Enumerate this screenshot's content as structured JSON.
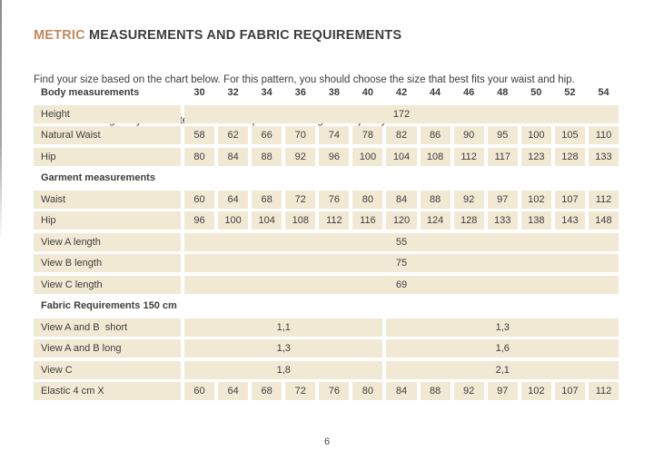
{
  "header": {
    "title_accent": "METRIC",
    "title_rest": " MEASUREMENTS AND FABRIC REQUIREMENTS",
    "subtitle_line1": "Find your size based on the chart below. For this pattern, you should choose the size that best fits your waist and hip.",
    "subtitle_line2": " Blend sizes if it gives you a better match.  The pattern is designed for jersey fabric."
  },
  "colors": {
    "accent": "#c0895f",
    "cell_background": "#f2e9d5",
    "text": "#3e3d3b"
  },
  "table": {
    "header_label": "Body measurements",
    "sizes": [
      "30",
      "32",
      "34",
      "36",
      "38",
      "40",
      "42",
      "44",
      "46",
      "48",
      "50",
      "52",
      "54"
    ],
    "rows": [
      {
        "label": "Height",
        "span_value": "172"
      },
      {
        "label": "Natural Waist",
        "values": [
          "58",
          "62",
          "66",
          "70",
          "74",
          "78",
          "82",
          "86",
          "90",
          "95",
          "100",
          "105",
          "110"
        ]
      },
      {
        "label": "Hip",
        "values": [
          "80",
          "84",
          "88",
          "92",
          "96",
          "100",
          "104",
          "108",
          "112",
          "117",
          "123",
          "128",
          "133"
        ]
      },
      {
        "label": "Garment measurements",
        "section": true
      },
      {
        "label": "Waist",
        "values": [
          "60",
          "64",
          "68",
          "72",
          "76",
          "80",
          "84",
          "88",
          "92",
          "97",
          "102",
          "107",
          "112"
        ]
      },
      {
        "label": "Hip",
        "values": [
          "96",
          "100",
          "104",
          "108",
          "112",
          "116",
          "120",
          "124",
          "128",
          "133",
          "138",
          "143",
          "148"
        ]
      },
      {
        "label": "View A length",
        "span_value": "55"
      },
      {
        "label": "View B length",
        "span_value": "75"
      },
      {
        "label": "View C length",
        "span_value": "69"
      },
      {
        "label": "Fabric Requirements 150 cm",
        "section": true
      },
      {
        "label": "View A and B  short",
        "split_values": [
          "1,1",
          "1,3"
        ]
      },
      {
        "label": "View A and B long",
        "split_values": [
          "1,3",
          "1,6"
        ]
      },
      {
        "label": "View C",
        "split_values": [
          "1,8",
          "2,1"
        ]
      },
      {
        "label": "Elastic 4 cm X",
        "values": [
          "60",
          "64",
          "68",
          "72",
          "76",
          "80",
          "84",
          "88",
          "92",
          "97",
          "102",
          "107",
          "112"
        ]
      }
    ]
  },
  "footer": {
    "page_number": "6"
  }
}
